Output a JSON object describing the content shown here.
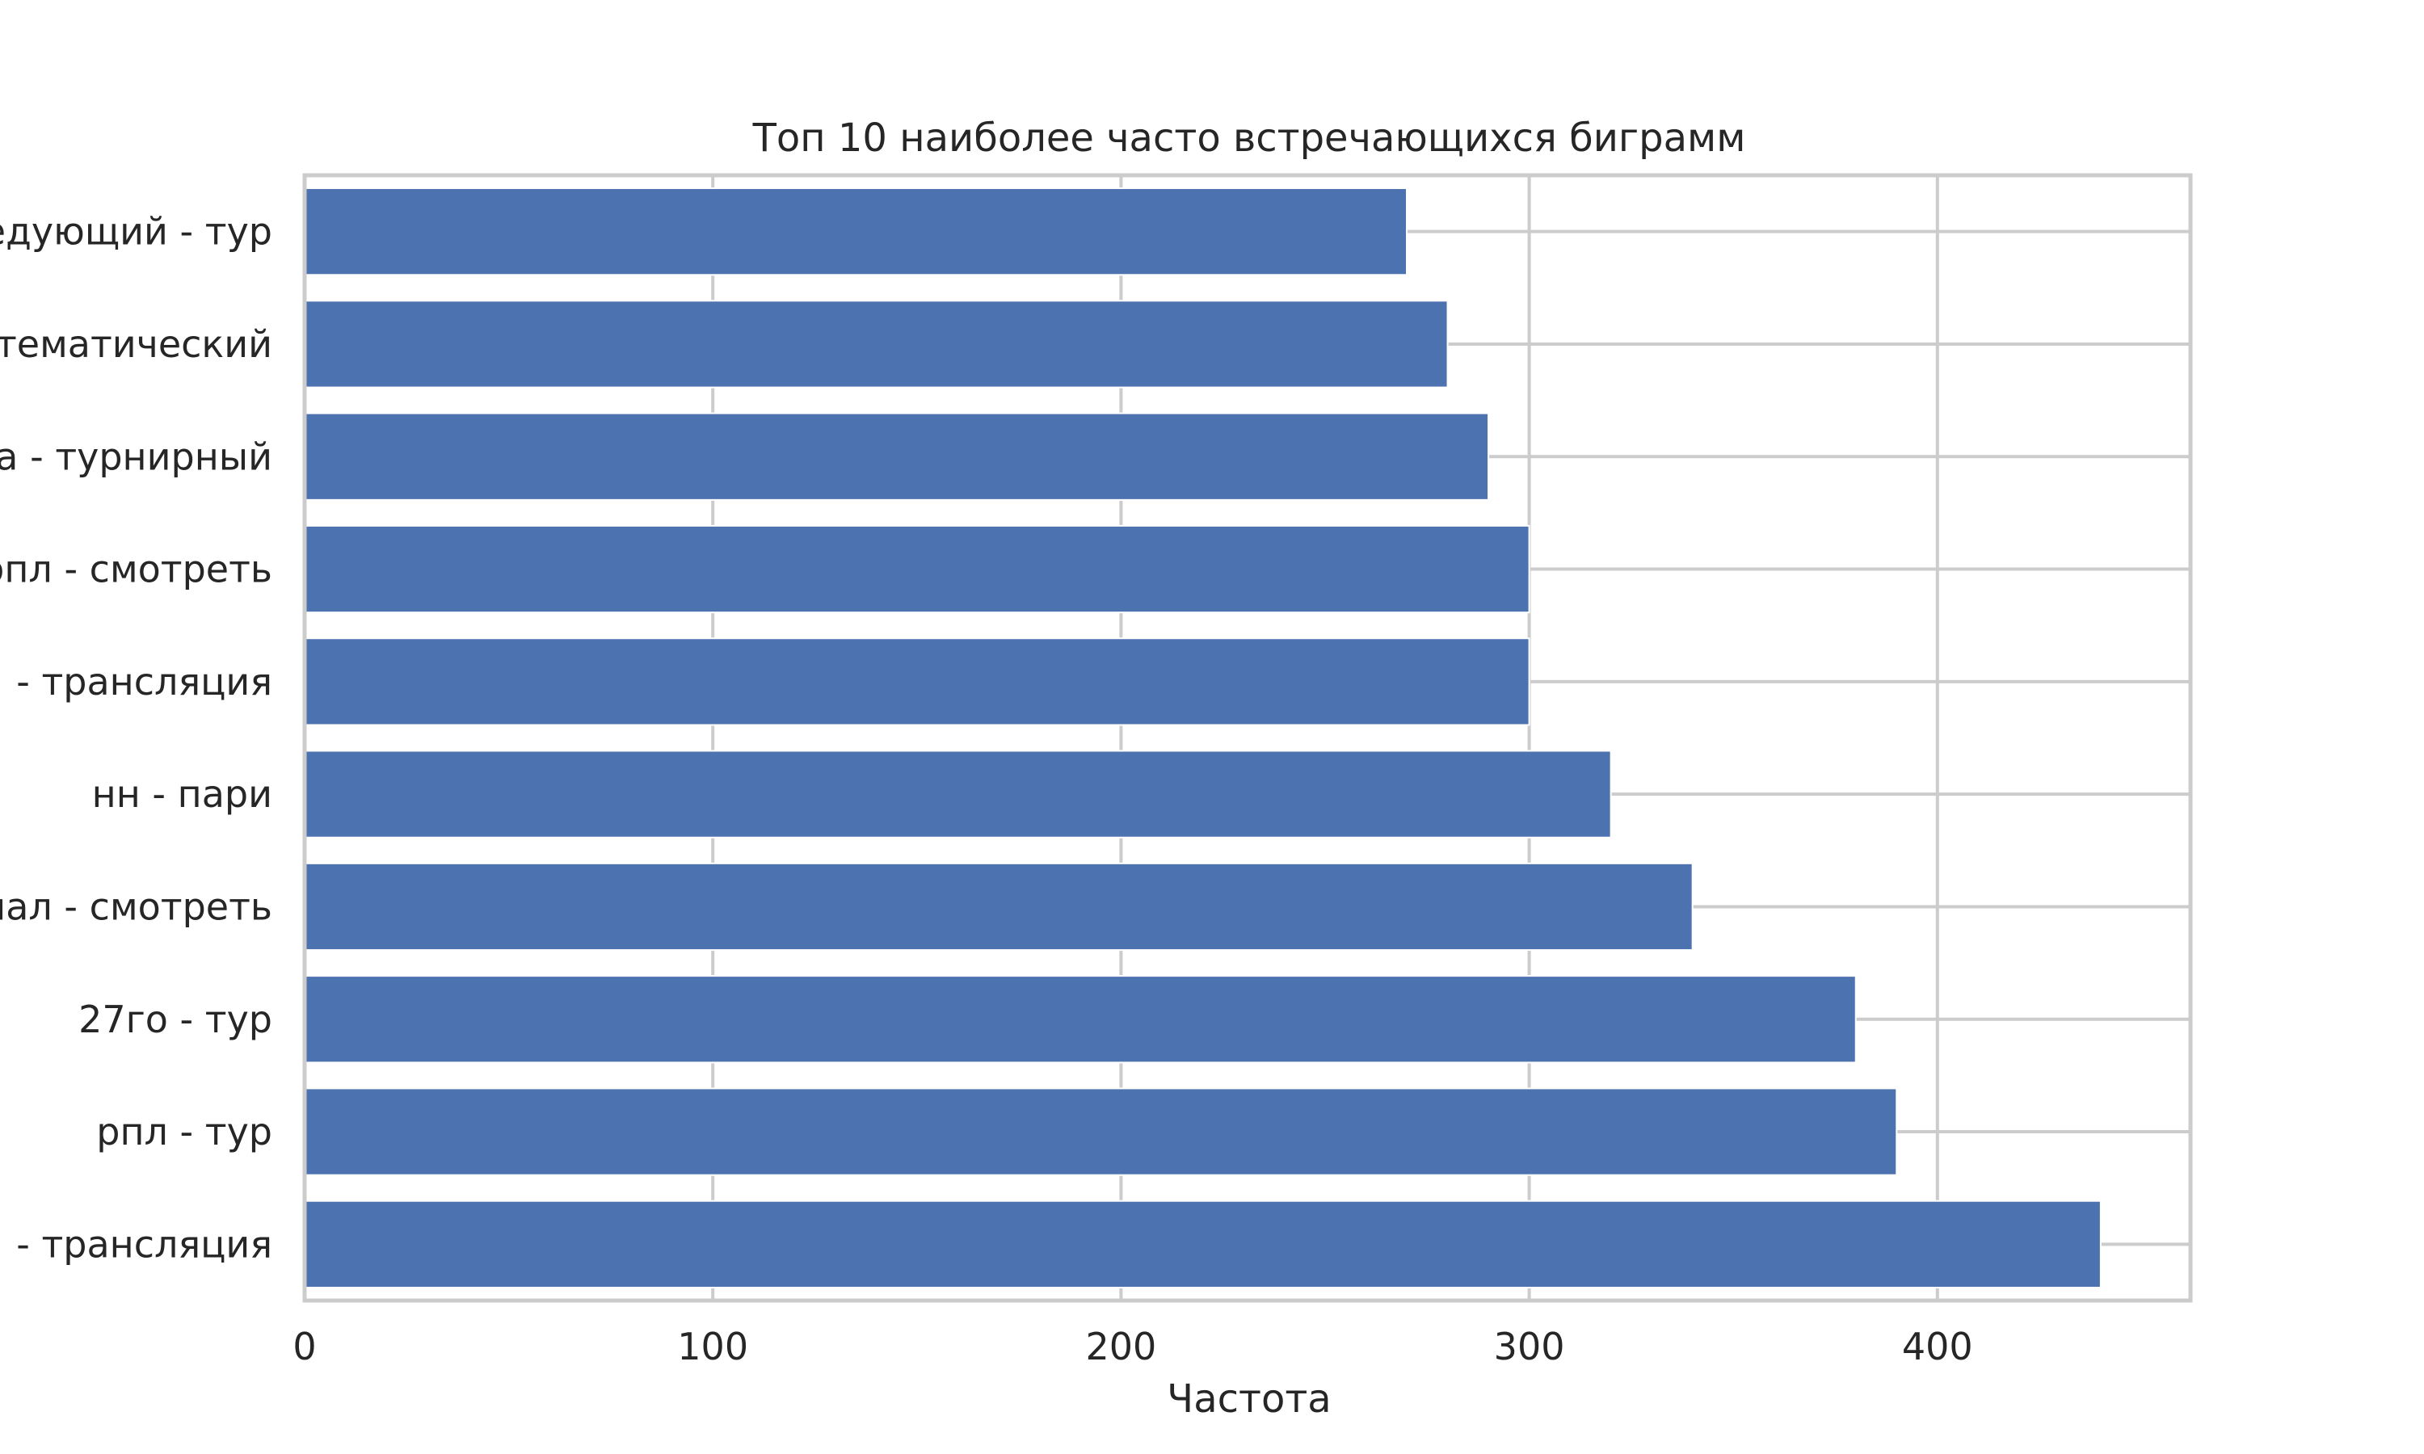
{
  "chart_data": {
    "type": "bar",
    "orientation": "horizontal",
    "title": "Топ 10 наиболее часто встречающихся биграмм",
    "xlabel": "Частота",
    "ylabel": "",
    "categories": [
      "следующий - тур",
      "тематический",
      "а - турнирный",
      "рпл - смотреть",
      "- трансляция",
      "нн - пари",
      "нал - смотреть",
      "27го - тур",
      "рпл - тур",
      "- трансляция"
    ],
    "values": [
      270,
      280,
      290,
      300,
      300,
      320,
      340,
      380,
      390,
      440
    ],
    "xlim": [
      0,
      462
    ],
    "xticks": [
      0,
      100,
      200,
      300,
      400
    ],
    "xtick_labels": [
      "0",
      "100",
      "200",
      "300",
      "400"
    ],
    "grid": true,
    "colors": {
      "bar": "#4c72b0",
      "grid": "#cccccc",
      "spine": "#cccccc",
      "text": "#262626"
    }
  }
}
